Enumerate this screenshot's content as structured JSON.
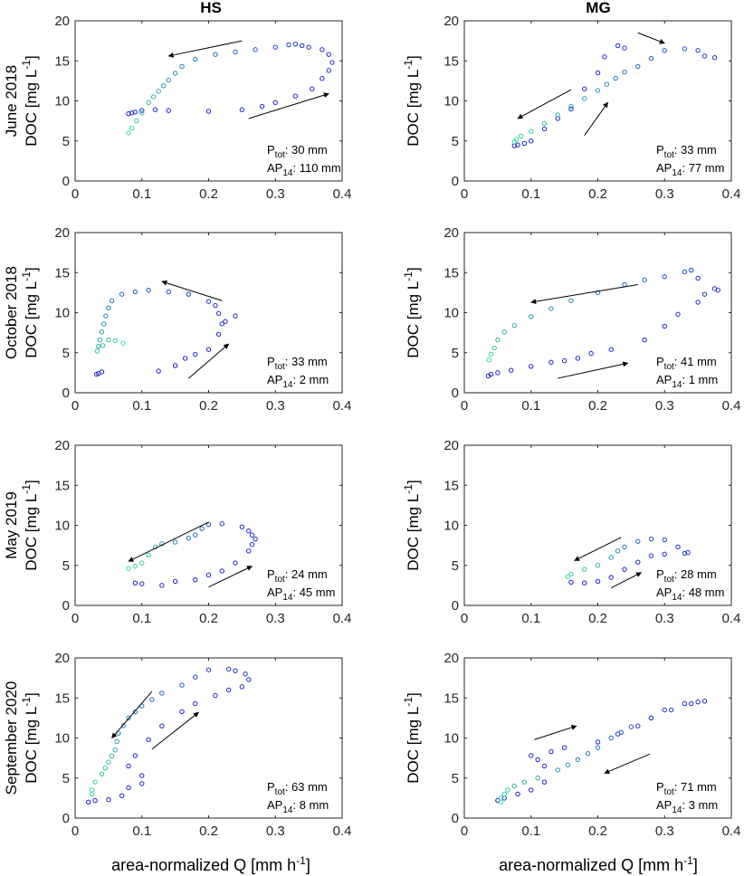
{
  "chart_data": {
    "type": "scatter",
    "column_titles": [
      "HS",
      "MG"
    ],
    "row_labels": [
      "June 2018",
      "October 2018",
      "May 2019",
      "September 2020"
    ],
    "ylabel": {
      "pre": "DOC [mg L",
      "sup": "-1",
      "post": "]"
    },
    "xlabel": {
      "pre": "area-normalized Q [mm h",
      "sup": "-1",
      "post": "]"
    },
    "xlim": [
      0,
      0.4
    ],
    "ylim": [
      0,
      20
    ],
    "x_ticks": [
      0,
      0.1,
      0.2,
      0.3,
      0.4
    ],
    "x_tick_labels": [
      "0",
      "0.1",
      "0.2",
      "0.3",
      "0.4"
    ],
    "y_ticks": [
      0,
      5,
      10,
      15,
      20
    ],
    "y_tick_labels": [
      "0",
      "5",
      "10",
      "15",
      "20"
    ],
    "color_start": "#1a1acc",
    "color_end": "#2ee89a",
    "panels": [
      {
        "row": 0,
        "col": 0,
        "P_tot": "30 mm",
        "AP_14": "110 mm",
        "rising": [
          [
            0.08,
            8.4
          ],
          [
            0.085,
            8.5
          ],
          [
            0.09,
            8.6
          ],
          [
            0.1,
            8.8
          ],
          [
            0.12,
            8.9
          ],
          [
            0.14,
            8.8
          ],
          [
            0.2,
            8.7
          ],
          [
            0.25,
            8.9
          ],
          [
            0.28,
            9.3
          ],
          [
            0.3,
            9.8
          ],
          [
            0.33,
            10.6
          ],
          [
            0.355,
            11.5
          ],
          [
            0.37,
            12.8
          ],
          [
            0.38,
            13.8
          ],
          [
            0.385,
            14.8
          ],
          [
            0.38,
            15.8
          ],
          [
            0.37,
            16.4
          ],
          [
            0.35,
            16.7
          ]
        ],
        "falling": [
          [
            0.34,
            16.9
          ],
          [
            0.33,
            17.1
          ],
          [
            0.32,
            17.0
          ],
          [
            0.3,
            16.7
          ],
          [
            0.27,
            16.4
          ],
          [
            0.24,
            16.1
          ],
          [
            0.21,
            15.8
          ],
          [
            0.18,
            15.2
          ],
          [
            0.16,
            14.3
          ],
          [
            0.14,
            12.6
          ],
          [
            0.125,
            11.2
          ],
          [
            0.11,
            9.8
          ],
          [
            0.1,
            8.5
          ],
          [
            0.092,
            7.5
          ],
          [
            0.085,
            6.6
          ],
          [
            0.08,
            6.0
          ]
        ],
        "arrows": [
          [
            0.25,
            17.5,
            0.14,
            15.6
          ],
          [
            0.26,
            7.8,
            0.38,
            10.9
          ]
        ]
      },
      {
        "row": 0,
        "col": 1,
        "P_tot": "33 mm",
        "AP_14": "77 mm",
        "rising": [
          [
            0.075,
            4.4
          ],
          [
            0.08,
            4.5
          ],
          [
            0.09,
            4.7
          ],
          [
            0.1,
            5.0
          ],
          [
            0.12,
            6.5
          ],
          [
            0.14,
            7.8
          ],
          [
            0.16,
            9.0
          ],
          [
            0.18,
            11.5
          ],
          [
            0.2,
            13.5
          ],
          [
            0.21,
            15.5
          ],
          [
            0.23,
            16.9
          ],
          [
            0.24,
            16.6
          ]
        ],
        "falling": [
          [
            0.375,
            15.4
          ],
          [
            0.36,
            15.6
          ],
          [
            0.35,
            16.3
          ],
          [
            0.33,
            16.5
          ],
          [
            0.3,
            16.3
          ],
          [
            0.28,
            15.3
          ],
          [
            0.26,
            14.3
          ],
          [
            0.24,
            13.6
          ],
          [
            0.2,
            11.3
          ],
          [
            0.16,
            9.3
          ],
          [
            0.12,
            7.2
          ],
          [
            0.1,
            6.2
          ],
          [
            0.085,
            5.6
          ],
          [
            0.078,
            5.2
          ],
          [
            0.075,
            4.9
          ]
        ],
        "arrows": [
          [
            0.26,
            18.5,
            0.3,
            17.2
          ],
          [
            0.16,
            11.4,
            0.08,
            7.8
          ],
          [
            0.18,
            5.7,
            0.215,
            9.8
          ]
        ]
      },
      {
        "row": 1,
        "col": 0,
        "P_tot": "33 mm",
        "AP_14": "2 mm",
        "rising": [
          [
            0.032,
            2.3
          ],
          [
            0.035,
            2.4
          ],
          [
            0.04,
            2.6
          ],
          [
            0.125,
            2.7
          ],
          [
            0.15,
            3.4
          ],
          [
            0.165,
            4.3
          ],
          [
            0.18,
            4.8
          ],
          [
            0.2,
            5.4
          ],
          [
            0.215,
            7.3
          ],
          [
            0.22,
            8.6
          ],
          [
            0.225,
            8.9
          ],
          [
            0.24,
            9.6
          ],
          [
            0.215,
            9.9
          ],
          [
            0.21,
            10.9
          ]
        ],
        "falling": [
          [
            0.2,
            11.4
          ],
          [
            0.17,
            12.3
          ],
          [
            0.14,
            12.6
          ],
          [
            0.11,
            12.8
          ],
          [
            0.09,
            12.6
          ],
          [
            0.07,
            12.3
          ],
          [
            0.055,
            11.5
          ],
          [
            0.05,
            10.6
          ],
          [
            0.046,
            9.6
          ],
          [
            0.043,
            8.6
          ],
          [
            0.04,
            7.6
          ],
          [
            0.037,
            6.6
          ],
          [
            0.035,
            5.8
          ],
          [
            0.033,
            5.2
          ],
          [
            0.05,
            6.6
          ],
          [
            0.06,
            6.5
          ],
          [
            0.072,
            6.2
          ]
        ],
        "arrows": [
          [
            0.22,
            11.5,
            0.13,
            13.9
          ],
          [
            0.17,
            1.8,
            0.23,
            6.1
          ]
        ]
      },
      {
        "row": 1,
        "col": 1,
        "P_tot": "41 mm",
        "AP_14": "1 mm",
        "rising": [
          [
            0.036,
            2.1
          ],
          [
            0.04,
            2.3
          ],
          [
            0.05,
            2.5
          ],
          [
            0.07,
            2.8
          ],
          [
            0.1,
            3.3
          ],
          [
            0.13,
            3.8
          ],
          [
            0.15,
            4.0
          ],
          [
            0.17,
            4.3
          ],
          [
            0.19,
            4.9
          ],
          [
            0.22,
            5.4
          ],
          [
            0.27,
            6.6
          ],
          [
            0.3,
            8.3
          ],
          [
            0.32,
            9.8
          ],
          [
            0.35,
            11.3
          ],
          [
            0.36,
            12.3
          ],
          [
            0.375,
            13.0
          ],
          [
            0.38,
            12.8
          ]
        ],
        "falling": [
          [
            0.35,
            14.3
          ],
          [
            0.34,
            15.3
          ],
          [
            0.33,
            15.1
          ],
          [
            0.3,
            14.5
          ],
          [
            0.27,
            14.1
          ],
          [
            0.24,
            13.5
          ],
          [
            0.2,
            12.5
          ],
          [
            0.16,
            11.5
          ],
          [
            0.13,
            10.5
          ],
          [
            0.1,
            9.5
          ],
          [
            0.075,
            8.4
          ],
          [
            0.06,
            7.6
          ],
          [
            0.05,
            6.6
          ],
          [
            0.045,
            5.6
          ],
          [
            0.04,
            4.8
          ],
          [
            0.037,
            4.1
          ]
        ],
        "arrows": [
          [
            0.26,
            13.5,
            0.1,
            11.3
          ],
          [
            0.14,
            1.8,
            0.245,
            3.7
          ]
        ]
      },
      {
        "row": 2,
        "col": 0,
        "P_tot": "24 mm",
        "AP_14": "45 mm",
        "rising": [
          [
            0.09,
            2.8
          ],
          [
            0.1,
            2.7
          ],
          [
            0.13,
            2.5
          ],
          [
            0.15,
            3.0
          ],
          [
            0.18,
            3.2
          ],
          [
            0.2,
            3.8
          ],
          [
            0.22,
            4.3
          ],
          [
            0.24,
            5.3
          ],
          [
            0.26,
            6.8
          ],
          [
            0.265,
            7.6
          ],
          [
            0.27,
            8.3
          ],
          [
            0.265,
            8.8
          ],
          [
            0.26,
            9.3
          ]
        ],
        "falling": [
          [
            0.25,
            9.8
          ],
          [
            0.22,
            10.2
          ],
          [
            0.2,
            10.1
          ],
          [
            0.19,
            9.6
          ],
          [
            0.18,
            8.8
          ],
          [
            0.17,
            8.4
          ],
          [
            0.15,
            7.9
          ],
          [
            0.13,
            7.7
          ],
          [
            0.12,
            7.3
          ],
          [
            0.11,
            6.3
          ],
          [
            0.1,
            5.3
          ],
          [
            0.09,
            4.9
          ],
          [
            0.08,
            4.6
          ]
        ],
        "arrows": [
          [
            0.2,
            10.4,
            0.08,
            5.5
          ],
          [
            0.2,
            2.3,
            0.265,
            4.9
          ]
        ]
      },
      {
        "row": 2,
        "col": 1,
        "P_tot": "28 mm",
        "AP_14": "48 mm",
        "rising": [
          [
            0.16,
            2.9
          ],
          [
            0.18,
            2.8
          ],
          [
            0.2,
            3.0
          ],
          [
            0.22,
            3.5
          ],
          [
            0.24,
            4.5
          ],
          [
            0.26,
            5.4
          ],
          [
            0.28,
            6.2
          ],
          [
            0.3,
            6.4
          ],
          [
            0.33,
            6.5
          ],
          [
            0.335,
            6.6
          ]
        ],
        "falling": [
          [
            0.32,
            7.3
          ],
          [
            0.3,
            8.2
          ],
          [
            0.28,
            8.3
          ],
          [
            0.26,
            8.0
          ],
          [
            0.24,
            7.3
          ],
          [
            0.23,
            6.8
          ],
          [
            0.22,
            6.0
          ],
          [
            0.2,
            5.0
          ],
          [
            0.18,
            4.5
          ],
          [
            0.16,
            3.9
          ],
          [
            0.155,
            3.6
          ]
        ],
        "arrows": [
          [
            0.235,
            8.5,
            0.165,
            5.6
          ],
          [
            0.22,
            2.2,
            0.265,
            4.1
          ]
        ]
      },
      {
        "row": 3,
        "col": 0,
        "P_tot": "63 mm",
        "AP_14": "8 mm",
        "rising": [
          [
            0.02,
            2.0
          ],
          [
            0.03,
            2.2
          ],
          [
            0.05,
            2.3
          ],
          [
            0.07,
            2.8
          ],
          [
            0.08,
            3.8
          ],
          [
            0.1,
            4.3
          ],
          [
            0.1,
            5.3
          ],
          [
            0.08,
            6.5
          ],
          [
            0.09,
            7.8
          ],
          [
            0.11,
            9.8
          ],
          [
            0.13,
            11.5
          ],
          [
            0.16,
            13.3
          ],
          [
            0.18,
            14.3
          ],
          [
            0.21,
            15.3
          ],
          [
            0.23,
            16.0
          ],
          [
            0.25,
            16.4
          ],
          [
            0.26,
            17.3
          ],
          [
            0.255,
            18.0
          ]
        ],
        "falling": [
          [
            0.24,
            18.4
          ],
          [
            0.23,
            18.6
          ],
          [
            0.2,
            18.5
          ],
          [
            0.18,
            17.6
          ],
          [
            0.16,
            16.6
          ],
          [
            0.13,
            15.6
          ],
          [
            0.1,
            14.0
          ],
          [
            0.08,
            12.5
          ],
          [
            0.065,
            10.6
          ],
          [
            0.06,
            8.5
          ],
          [
            0.05,
            7.0
          ],
          [
            0.04,
            5.5
          ],
          [
            0.03,
            4.5
          ],
          [
            0.025,
            3.5
          ],
          [
            0.025,
            3.0
          ]
        ],
        "arrows": [
          [
            0.115,
            15.8,
            0.055,
            10.0
          ],
          [
            0.115,
            8.6,
            0.185,
            13.2
          ]
        ]
      },
      {
        "row": 3,
        "col": 1,
        "P_tot": "71 mm",
        "AP_14": "3 mm",
        "rising": [
          [
            0.05,
            2.2
          ],
          [
            0.06,
            2.5
          ],
          [
            0.08,
            3.0
          ],
          [
            0.1,
            3.5
          ],
          [
            0.12,
            4.5
          ],
          [
            0.12,
            6.5
          ],
          [
            0.11,
            7.3
          ],
          [
            0.1,
            7.8
          ],
          [
            0.13,
            8.3
          ],
          [
            0.15,
            8.8
          ],
          [
            0.2,
            9.5
          ],
          [
            0.23,
            10.5
          ],
          [
            0.26,
            11.5
          ],
          [
            0.28,
            12.5
          ],
          [
            0.3,
            13.5
          ],
          [
            0.33,
            14.3
          ],
          [
            0.35,
            14.5
          ],
          [
            0.36,
            14.6
          ]
        ],
        "falling": [
          [
            0.34,
            14.3
          ],
          [
            0.31,
            13.5
          ],
          [
            0.28,
            12.5
          ],
          [
            0.25,
            11.4
          ],
          [
            0.22,
            10.0
          ],
          [
            0.2,
            8.8
          ],
          [
            0.17,
            7.3
          ],
          [
            0.14,
            6.0
          ],
          [
            0.11,
            5.0
          ],
          [
            0.09,
            4.5
          ],
          [
            0.075,
            4.0
          ],
          [
            0.065,
            3.5
          ],
          [
            0.06,
            3.0
          ],
          [
            0.055,
            2.5
          ],
          [
            0.055,
            2.0
          ]
        ],
        "arrows": [
          [
            0.105,
            9.8,
            0.168,
            11.5
          ],
          [
            0.278,
            8.0,
            0.21,
            5.6
          ]
        ]
      }
    ]
  }
}
